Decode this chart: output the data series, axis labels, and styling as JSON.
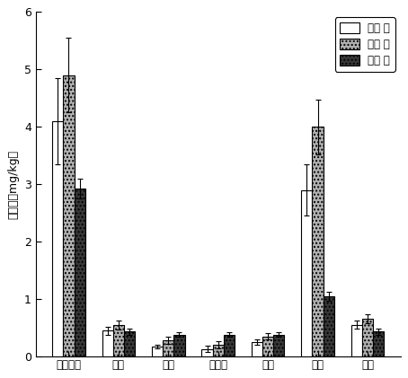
{
  "categories": [
    "金丝垂柳",
    "銀杏",
    "香樟",
    "广玉兰",
    "栾树",
    "杨树",
    "水杉"
  ],
  "stem": [
    4.1,
    0.45,
    0.17,
    0.13,
    0.25,
    2.9,
    0.55
  ],
  "leaf": [
    4.9,
    0.55,
    0.28,
    0.2,
    0.35,
    4.0,
    0.65
  ],
  "root": [
    2.92,
    0.43,
    0.38,
    0.38,
    0.38,
    1.05,
    0.43
  ],
  "stem_err": [
    0.75,
    0.07,
    0.03,
    0.05,
    0.05,
    0.45,
    0.07
  ],
  "leaf_err": [
    0.65,
    0.08,
    0.06,
    0.06,
    0.06,
    0.48,
    0.08
  ],
  "root_err": [
    0.17,
    0.05,
    0.04,
    0.04,
    0.04,
    0.08,
    0.05
  ],
  "ylabel": "茜浓度（mg/kg）",
  "ylim": [
    0,
    6
  ],
  "yticks": [
    0,
    1,
    2,
    3,
    4,
    5,
    6
  ],
  "legend_labels": [
    "茎浓 度",
    "叶浓 度",
    "根浓 度"
  ],
  "stem_color": "#ffffff",
  "leaf_color": "#b0b0b0",
  "root_color": "#383838",
  "bar_edge": "#000000",
  "bar_width": 0.22,
  "bg_color": "#ffffff",
  "fig_width": 4.54,
  "fig_height": 4.21,
  "dpi": 100
}
